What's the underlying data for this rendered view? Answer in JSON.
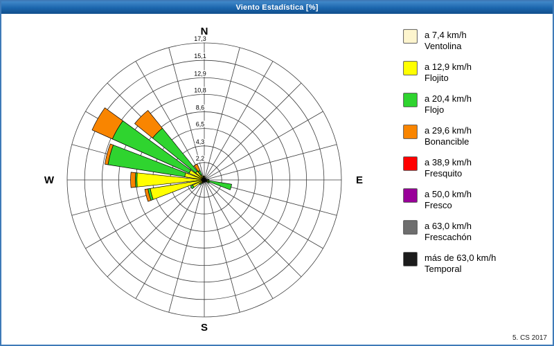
{
  "window": {
    "title": "Viento Estadística [%]",
    "watermark": "5. CS 2017"
  },
  "chart_data": {
    "type": "windrose",
    "title": "Viento Estadística [%]",
    "units": "%",
    "rmax": 17.3,
    "rlim": [
      0,
      17.3
    ],
    "grid": true,
    "grid_color": "#3a3a3a",
    "legend_position": "right",
    "sector_count": 24,
    "petal_half_angle_deg": 6,
    "cardinal_labels": {
      "n": "N",
      "e": "E",
      "s": "S",
      "w": "W"
    },
    "rings": [
      {
        "value": 2.2,
        "label": "2,2"
      },
      {
        "value": 4.3,
        "label": "4,3"
      },
      {
        "value": 6.5,
        "label": "6,5"
      },
      {
        "value": 8.6,
        "label": "8,6"
      },
      {
        "value": 10.8,
        "label": "10,8"
      },
      {
        "value": 12.9,
        "label": "12,9"
      },
      {
        "value": 15.1,
        "label": "15,1"
      },
      {
        "value": 17.3,
        "label": "17,3"
      }
    ],
    "speed_bins": [
      {
        "name": "Ventolina",
        "speed_label": "a 7,4 km/h",
        "color": "#FDF5CE"
      },
      {
        "name": "Flojito",
        "speed_label": "a 12,9 km/h",
        "color": "#FFFF00"
      },
      {
        "name": "Flojo",
        "speed_label": "a 20,4 km/h",
        "color": "#2FD42F"
      },
      {
        "name": "Bonancible",
        "speed_label": "a 29,6 km/h",
        "color": "#F98500"
      },
      {
        "name": "Fresquito",
        "speed_label": "a 38,9 km/h",
        "color": "#FF0000"
      },
      {
        "name": "Fresco",
        "speed_label": "a 50,0 km/h",
        "color": "#990099"
      },
      {
        "name": "Frescachón",
        "speed_label": "a 63,0 km/h",
        "color": "#6E6E6E"
      },
      {
        "name": "Temporal",
        "speed_label": "más de 63,0 km/h",
        "color": "#1C1C1C"
      }
    ],
    "directions": [
      {
        "bearing": 0,
        "values": [
          0.2,
          0.3,
          0,
          0,
          0,
          0,
          0,
          0
        ]
      },
      {
        "bearing": 15,
        "values": [
          0.1,
          0.1,
          0,
          0,
          0,
          0,
          0,
          0
        ]
      },
      {
        "bearing": 30,
        "values": [
          0.1,
          0.2,
          0,
          0,
          0,
          0,
          0,
          0
        ]
      },
      {
        "bearing": 45,
        "values": [
          0.1,
          0.1,
          0,
          0,
          0,
          0,
          0,
          0
        ]
      },
      {
        "bearing": 60,
        "values": [
          0.1,
          0.1,
          0,
          0,
          0,
          0,
          0,
          0
        ]
      },
      {
        "bearing": 75,
        "values": [
          0.1,
          0.2,
          0,
          0,
          0,
          0,
          0,
          0
        ]
      },
      {
        "bearing": 90,
        "values": [
          0.1,
          0.3,
          0.2,
          0,
          0,
          0,
          0,
          0
        ]
      },
      {
        "bearing": 105,
        "values": [
          0.2,
          0.4,
          2.9,
          0,
          0,
          0,
          0,
          0
        ]
      },
      {
        "bearing": 120,
        "values": [
          0.1,
          0.3,
          0.3,
          0,
          0,
          0,
          0,
          0
        ]
      },
      {
        "bearing": 135,
        "values": [
          0.1,
          0.2,
          0,
          0,
          0,
          0,
          0,
          0
        ]
      },
      {
        "bearing": 150,
        "values": [
          0.1,
          0.1,
          0,
          0,
          0,
          0,
          0,
          0
        ]
      },
      {
        "bearing": 165,
        "values": [
          0.1,
          0.2,
          0,
          0,
          0,
          0,
          0,
          0
        ]
      },
      {
        "bearing": 180,
        "values": [
          0.1,
          0.2,
          0,
          0,
          0,
          0,
          0,
          0
        ]
      },
      {
        "bearing": 195,
        "values": [
          0.1,
          0.2,
          0,
          0,
          0,
          0,
          0,
          0
        ]
      },
      {
        "bearing": 210,
        "values": [
          0.1,
          0.3,
          0.1,
          0,
          0,
          0,
          0,
          0
        ]
      },
      {
        "bearing": 225,
        "values": [
          0.2,
          0.4,
          0.2,
          0,
          0,
          0,
          0,
          0
        ]
      },
      {
        "bearing": 240,
        "values": [
          0.2,
          1.4,
          0.3,
          0,
          0,
          0,
          0,
          0
        ]
      },
      {
        "bearing": 255,
        "values": [
          0.3,
          6.6,
          0.3,
          0.4,
          0,
          0,
          0,
          0
        ]
      },
      {
        "bearing": 270,
        "values": [
          0.3,
          8.2,
          0.2,
          0.6,
          0,
          0,
          0,
          0
        ]
      },
      {
        "bearing": 285,
        "values": [
          0.3,
          2.2,
          9.8,
          0.4,
          0,
          0,
          0,
          0
        ]
      },
      {
        "bearing": 300,
        "values": [
          0.3,
          1.8,
          10.6,
          2.8,
          0,
          0,
          0,
          0
        ]
      },
      {
        "bearing": 315,
        "values": [
          0.2,
          1.2,
          7.0,
          2.9,
          0,
          0,
          0,
          0
        ]
      },
      {
        "bearing": 330,
        "values": [
          0.2,
          0.5,
          0.6,
          0.9,
          0,
          0,
          0,
          0
        ]
      },
      {
        "bearing": 345,
        "values": [
          0.1,
          0.3,
          0.1,
          0,
          0,
          0,
          0,
          0
        ]
      }
    ]
  }
}
